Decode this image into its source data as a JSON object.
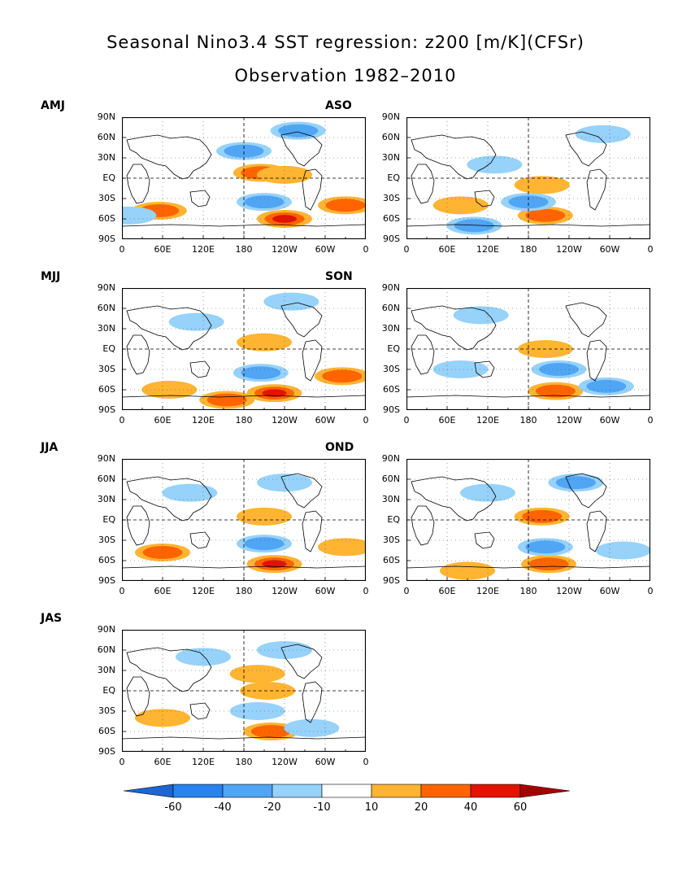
{
  "title_line1": "Seasonal Nino3.4 SST regression: z200 [m/K](CFSr)",
  "title_line2": "Observation 1982–2010",
  "y_ticks": [
    "90N",
    "60N",
    "30N",
    "EQ",
    "30S",
    "60S",
    "90S"
  ],
  "x_ticks": [
    "0",
    "60E",
    "120E",
    "180",
    "120W",
    "60W",
    "0"
  ],
  "panels": [
    {
      "label": "AMJ"
    },
    {
      "label": "ASO"
    },
    {
      "label": "MJJ"
    },
    {
      "label": "SON"
    },
    {
      "label": "JJA"
    },
    {
      "label": "OND"
    },
    {
      "label": "JAS"
    }
  ],
  "colorbar": {
    "labels": [
      "-60",
      "-40",
      "-20",
      "-10",
      "10",
      "20",
      "40",
      "60"
    ],
    "colors": [
      "#1e64d2",
      "#2882f0",
      "#50a5f5",
      "#96d2fa",
      "#ffffff",
      "#ffb432",
      "#ff6400",
      "#e11400",
      "#a50000"
    ]
  },
  "chart_data": {
    "type": "heatmap",
    "title": "Seasonal Nino3.4 SST regression: z200 [m/K](CFSr)",
    "subtitle": "Observation 1982–2010",
    "variable": "z200",
    "units": "m/K",
    "x_axis": {
      "range": [
        0,
        360
      ],
      "tick_labels": [
        "0",
        "60E",
        "120E",
        "180",
        "120W",
        "60W",
        "0"
      ]
    },
    "y_axis": {
      "range": [
        -90,
        90
      ],
      "tick_labels": [
        "90N",
        "60N",
        "30N",
        "EQ",
        "30S",
        "60S",
        "90S"
      ]
    },
    "contour_levels": [
      -60,
      -40,
      -20,
      -10,
      10,
      20,
      40,
      60
    ],
    "panels": [
      {
        "season": "AMJ",
        "features": [
          {
            "lon": 205,
            "lat": 8,
            "value": 20
          },
          {
            "lon": 240,
            "lat": 5,
            "value": 10
          },
          {
            "lon": 240,
            "lat": -60,
            "value": 40
          },
          {
            "lon": 55,
            "lat": -48,
            "value": 20
          },
          {
            "lon": 330,
            "lat": -40,
            "value": 20
          },
          {
            "lon": 180,
            "lat": 40,
            "value": -20
          },
          {
            "lon": 260,
            "lat": 70,
            "value": -20
          },
          {
            "lon": 210,
            "lat": -35,
            "value": -20
          },
          {
            "lon": 10,
            "lat": -55,
            "value": -10
          }
        ]
      },
      {
        "season": "ASO",
        "features": [
          {
            "lon": 200,
            "lat": -10,
            "value": 10
          },
          {
            "lon": 205,
            "lat": -55,
            "value": 20
          },
          {
            "lon": 80,
            "lat": -40,
            "value": 10
          },
          {
            "lon": 180,
            "lat": -35,
            "value": -20
          },
          {
            "lon": 100,
            "lat": -70,
            "value": -20
          },
          {
            "lon": 130,
            "lat": 20,
            "value": -10
          },
          {
            "lon": 290,
            "lat": 65,
            "value": -10
          }
        ]
      },
      {
        "season": "MJJ",
        "features": [
          {
            "lon": 225,
            "lat": -65,
            "value": 40
          },
          {
            "lon": 210,
            "lat": 10,
            "value": 10
          },
          {
            "lon": 70,
            "lat": -60,
            "value": 10
          },
          {
            "lon": 155,
            "lat": -75,
            "value": 20
          },
          {
            "lon": 325,
            "lat": -40,
            "value": 20
          },
          {
            "lon": 205,
            "lat": -35,
            "value": -20
          },
          {
            "lon": 110,
            "lat": 40,
            "value": -10
          },
          {
            "lon": 250,
            "lat": 70,
            "value": -10
          }
        ]
      },
      {
        "season": "SON",
        "features": [
          {
            "lon": 205,
            "lat": 0,
            "value": 10
          },
          {
            "lon": 220,
            "lat": -62,
            "value": 20
          },
          {
            "lon": 225,
            "lat": -30,
            "value": -20
          },
          {
            "lon": 295,
            "lat": -55,
            "value": -20
          },
          {
            "lon": 80,
            "lat": -30,
            "value": -10
          },
          {
            "lon": 110,
            "lat": 50,
            "value": -10
          }
        ]
      },
      {
        "season": "JJA",
        "features": [
          {
            "lon": 210,
            "lat": 5,
            "value": 10
          },
          {
            "lon": 225,
            "lat": -65,
            "value": 40
          },
          {
            "lon": 60,
            "lat": -48,
            "value": 20
          },
          {
            "lon": 330,
            "lat": -40,
            "value": 10
          },
          {
            "lon": 210,
            "lat": -35,
            "value": -20
          },
          {
            "lon": 240,
            "lat": 55,
            "value": -10
          },
          {
            "lon": 100,
            "lat": 40,
            "value": -10
          }
        ]
      },
      {
        "season": "OND",
        "features": [
          {
            "lon": 200,
            "lat": 5,
            "value": 20
          },
          {
            "lon": 210,
            "lat": -65,
            "value": 20
          },
          {
            "lon": 90,
            "lat": -75,
            "value": 10
          },
          {
            "lon": 205,
            "lat": -40,
            "value": -20
          },
          {
            "lon": 250,
            "lat": 55,
            "value": -20
          },
          {
            "lon": 120,
            "lat": 40,
            "value": -10
          },
          {
            "lon": 320,
            "lat": -45,
            "value": -10
          }
        ]
      },
      {
        "season": "JAS",
        "features": [
          {
            "lon": 215,
            "lat": 0,
            "value": 10
          },
          {
            "lon": 220,
            "lat": -60,
            "value": 20
          },
          {
            "lon": 200,
            "lat": 25,
            "value": 10
          },
          {
            "lon": 60,
            "lat": -40,
            "value": 10
          },
          {
            "lon": 200,
            "lat": -30,
            "value": -10
          },
          {
            "lon": 280,
            "lat": -55,
            "value": -10
          },
          {
            "lon": 120,
            "lat": 50,
            "value": -10
          },
          {
            "lon": 240,
            "lat": 60,
            "value": -10
          }
        ]
      }
    ]
  }
}
